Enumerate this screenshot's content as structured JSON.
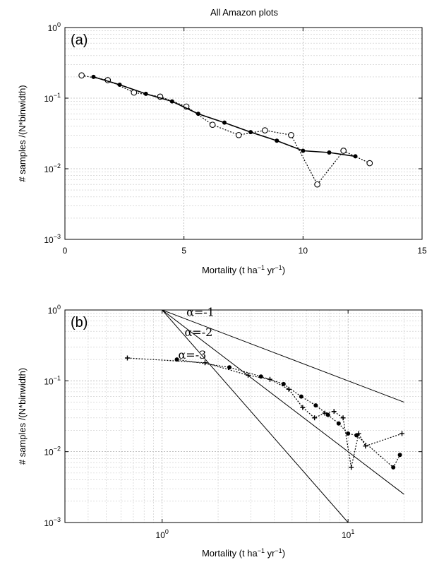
{
  "title": "All Amazon plots",
  "chart_data": [
    {
      "panel_label": "(a)",
      "type": "line",
      "xlabel": "Mortality (t ha",
      "xlabel_unit_exp1": "−1",
      "xlabel_unit_mid": " yr",
      "xlabel_unit_exp2": "−1",
      "xlabel_close": ")",
      "ylabel": "# samples /(N*binwidth)",
      "xscale": "linear",
      "yscale": "log",
      "xlim": [
        0,
        15
      ],
      "ylim": [
        0.001,
        1
      ],
      "grid": true,
      "xticks": [
        0,
        5,
        10,
        15
      ],
      "xtick_labels": [
        "0",
        "5",
        "10",
        "15"
      ],
      "yticks": [
        0.001,
        0.01,
        0.1,
        1
      ],
      "ytick_labels": [
        {
          "base": "10",
          "exp": "−3"
        },
        {
          "base": "10",
          "exp": "−2"
        },
        {
          "base": "10",
          "exp": "−1"
        },
        {
          "base": "10",
          "exp": "0"
        }
      ],
      "series": [
        {
          "style": "dotted-open-circle",
          "x": [
            0.7,
            1.8,
            2.9,
            4.0,
            5.1,
            6.2,
            7.3,
            8.4,
            9.5,
            10.6,
            11.7,
            12.8
          ],
          "y": [
            0.21,
            0.18,
            0.12,
            0.105,
            0.076,
            0.042,
            0.03,
            0.035,
            0.03,
            0.006,
            0.018,
            0.012
          ]
        },
        {
          "style": "solid-dot",
          "x": [
            1.2,
            2.3,
            3.4,
            4.5,
            5.6,
            6.7,
            7.8,
            8.9,
            10.0,
            11.1,
            12.2
          ],
          "y": [
            0.2,
            0.155,
            0.115,
            0.09,
            0.06,
            0.045,
            0.033,
            0.025,
            0.018,
            0.017,
            0.015
          ]
        }
      ]
    },
    {
      "panel_label": "(b)",
      "type": "line",
      "xlabel": "Mortality (t ha",
      "xlabel_unit_exp1": "−1",
      "xlabel_unit_mid": " yr",
      "xlabel_unit_exp2": "−1",
      "xlabel_close": ")",
      "ylabel": "# samples /(N*binwidth)",
      "xscale": "log",
      "yscale": "log",
      "xlim": [
        0.3,
        25
      ],
      "ylim": [
        0.001,
        1
      ],
      "grid": true,
      "xticks": [
        1,
        10
      ],
      "xtick_labels": [
        {
          "base": "10",
          "exp": "0"
        },
        {
          "base": "10",
          "exp": "1"
        }
      ],
      "yticks": [
        0.001,
        0.01,
        0.1,
        1
      ],
      "ytick_labels": [
        {
          "base": "10",
          "exp": "−3"
        },
        {
          "base": "10",
          "exp": "−2"
        },
        {
          "base": "10",
          "exp": "−1"
        },
        {
          "base": "10",
          "exp": "0"
        }
      ],
      "reference_lines": [
        {
          "alpha": -1,
          "label": "α=-1",
          "x": [
            1,
            20
          ],
          "y": [
            1,
            0.05
          ]
        },
        {
          "alpha": -2,
          "label": "α=-2",
          "x": [
            1,
            20
          ],
          "y": [
            1,
            0.0025
          ]
        },
        {
          "alpha": -3,
          "label": "α=-3",
          "x": [
            1,
            10
          ],
          "y": [
            1,
            0.001
          ]
        }
      ],
      "series": [
        {
          "style": "dotted-plus",
          "x": [
            0.65,
            1.7,
            2.9,
            3.8,
            4.8,
            5.7,
            6.6,
            7.5,
            8.4,
            9.4,
            10.4,
            11.4,
            12.4,
            19.5
          ],
          "y": [
            0.21,
            0.18,
            0.12,
            0.105,
            0.076,
            0.042,
            0.03,
            0.035,
            0.037,
            0.03,
            0.006,
            0.018,
            0.012,
            0.018
          ]
        },
        {
          "style": "dotted-dot",
          "x": [
            1.2,
            2.3,
            3.4,
            4.5,
            5.6,
            6.7,
            7.8,
            8.9,
            10.0,
            11.1,
            17.5,
            19.0
          ],
          "y": [
            0.2,
            0.155,
            0.115,
            0.09,
            0.06,
            0.045,
            0.033,
            0.025,
            0.018,
            0.017,
            0.006,
            0.009
          ]
        }
      ]
    }
  ]
}
